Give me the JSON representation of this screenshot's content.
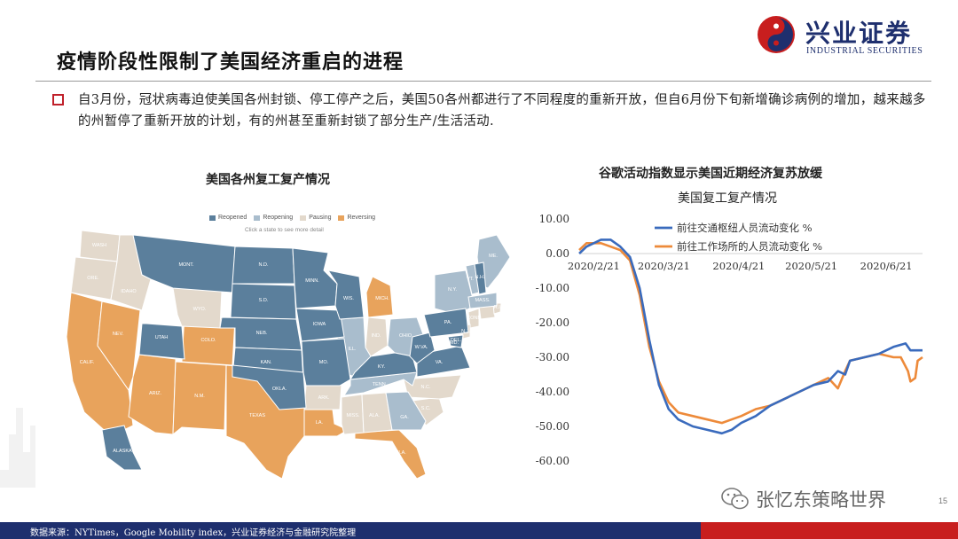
{
  "logo": {
    "cn": "兴业证券",
    "en": "INDUSTRIAL SECURITIES"
  },
  "title": "疫情阶段性限制了美国经济重启的进程",
  "body_text": "自3月份，冠状病毒迫使美国各州封锁、停工停产之后，美国50各州都进行了不同程度的重新开放，但自6月份下旬新增确诊病例的增加，越来越多的州暂停了重新开放的计划，有的州甚至重新封锁了部分生产/生活活动.",
  "map": {
    "title": "美国各州复工复产情况",
    "hint": "Click a state to see more detail",
    "legend": [
      {
        "label": "Reopened",
        "color": "#5b7f9c"
      },
      {
        "label": "Reopening",
        "color": "#a9bdcd"
      },
      {
        "label": "Pausing",
        "color": "#e3d9cc"
      },
      {
        "label": "Reversing",
        "color": "#e8a35c"
      }
    ],
    "state_labels": [
      "WASH",
      "ORE.",
      "CALIF.",
      "NEV.",
      "IDAHO",
      "MONT.",
      "WYO.",
      "UTAH",
      "ARIZ.",
      "COLO.",
      "N.M.",
      "N.D.",
      "S.D.",
      "NEB.",
      "KAN.",
      "OKLA.",
      "TEXAS",
      "MINN.",
      "IOWA",
      "MO.",
      "ARK.",
      "LA.",
      "WIS.",
      "ILL.",
      "MICH.",
      "IND.",
      "OHIO",
      "KY.",
      "TENN.",
      "MISS.",
      "ALA.",
      "GA.",
      "FLA.",
      "S.C.",
      "N.C.",
      "VA.",
      "W.VA.",
      "PA.",
      "N.Y.",
      "VT.",
      "N.H.",
      "ME.",
      "MASS.",
      "CONN.",
      "N.J.",
      "DEL.",
      "MD.",
      "R.I.",
      "ALASKA"
    ]
  },
  "chart_data": {
    "type": "line",
    "title": "谷歌活动指数显示美国近期经济复苏放缓",
    "subtitle": "美国复工复产情况",
    "x_ticks": [
      "2020/2/21",
      "2020/3/21",
      "2020/4/21",
      "2020/5/21",
      "2020/6/21"
    ],
    "x_range": [
      "2020-02-15",
      "2020-07-06"
    ],
    "y_ticks": [
      "10.00",
      "0.00",
      "-10.00",
      "-20.00",
      "-30.00",
      "-40.00",
      "-50.00",
      "-60.00"
    ],
    "ylim": [
      -60,
      10
    ],
    "legend_position": "top-right",
    "series": [
      {
        "name": "前往交通枢纽人员流动变化 %",
        "color": "#3a6bbd",
        "points": [
          [
            "2020-02-15",
            0
          ],
          [
            "2020-02-18",
            2
          ],
          [
            "2020-02-21",
            3
          ],
          [
            "2020-02-24",
            4
          ],
          [
            "2020-02-28",
            4
          ],
          [
            "2020-03-03",
            2
          ],
          [
            "2020-03-07",
            -1
          ],
          [
            "2020-03-11",
            -10
          ],
          [
            "2020-03-15",
            -25
          ],
          [
            "2020-03-19",
            -38
          ],
          [
            "2020-03-23",
            -45
          ],
          [
            "2020-03-27",
            -48
          ],
          [
            "2020-04-02",
            -50
          ],
          [
            "2020-04-08",
            -51
          ],
          [
            "2020-04-14",
            -52
          ],
          [
            "2020-04-18",
            -51
          ],
          [
            "2020-04-22",
            -49
          ],
          [
            "2020-04-28",
            -47
          ],
          [
            "2020-05-04",
            -44
          ],
          [
            "2020-05-10",
            -42
          ],
          [
            "2020-05-16",
            -40
          ],
          [
            "2020-05-22",
            -38
          ],
          [
            "2020-05-28",
            -37
          ],
          [
            "2020-06-01",
            -34
          ],
          [
            "2020-06-04",
            -35
          ],
          [
            "2020-06-06",
            -31
          ],
          [
            "2020-06-12",
            -30
          ],
          [
            "2020-06-18",
            -29
          ],
          [
            "2020-06-24",
            -27
          ],
          [
            "2020-06-29",
            -26
          ],
          [
            "2020-07-01",
            -28
          ],
          [
            "2020-07-04",
            -28
          ],
          [
            "2020-07-06",
            -28
          ]
        ]
      },
      {
        "name": "前往工作场所的人员流动变化 %",
        "color": "#ed8a3a",
        "points": [
          [
            "2020-02-15",
            1
          ],
          [
            "2020-02-18",
            3
          ],
          [
            "2020-02-21",
            3
          ],
          [
            "2020-02-24",
            3
          ],
          [
            "2020-02-28",
            2
          ],
          [
            "2020-03-03",
            1
          ],
          [
            "2020-03-07",
            -2
          ],
          [
            "2020-03-11",
            -12
          ],
          [
            "2020-03-15",
            -27
          ],
          [
            "2020-03-19",
            -37
          ],
          [
            "2020-03-23",
            -43
          ],
          [
            "2020-03-27",
            -46
          ],
          [
            "2020-04-02",
            -47
          ],
          [
            "2020-04-08",
            -48
          ],
          [
            "2020-04-14",
            -49
          ],
          [
            "2020-04-18",
            -48
          ],
          [
            "2020-04-22",
            -47
          ],
          [
            "2020-04-28",
            -45
          ],
          [
            "2020-05-04",
            -44
          ],
          [
            "2020-05-10",
            -42
          ],
          [
            "2020-05-16",
            -40
          ],
          [
            "2020-05-22",
            -38
          ],
          [
            "2020-05-28",
            -36
          ],
          [
            "2020-06-01",
            -39
          ],
          [
            "2020-06-04",
            -34
          ],
          [
            "2020-06-06",
            -31
          ],
          [
            "2020-06-12",
            -30
          ],
          [
            "2020-06-18",
            -29
          ],
          [
            "2020-06-24",
            -30
          ],
          [
            "2020-06-27",
            -30
          ],
          [
            "2020-06-30",
            -34
          ],
          [
            "2020-07-01",
            -37
          ],
          [
            "2020-07-03",
            -36
          ],
          [
            "2020-07-04",
            -31
          ],
          [
            "2020-07-06",
            -30
          ]
        ]
      }
    ]
  },
  "watermark": "张忆东策略世界",
  "page_number": "15",
  "footer": "数据来源：NYTimes，Google Mobility index，兴业证券经济与金融研究院整理"
}
